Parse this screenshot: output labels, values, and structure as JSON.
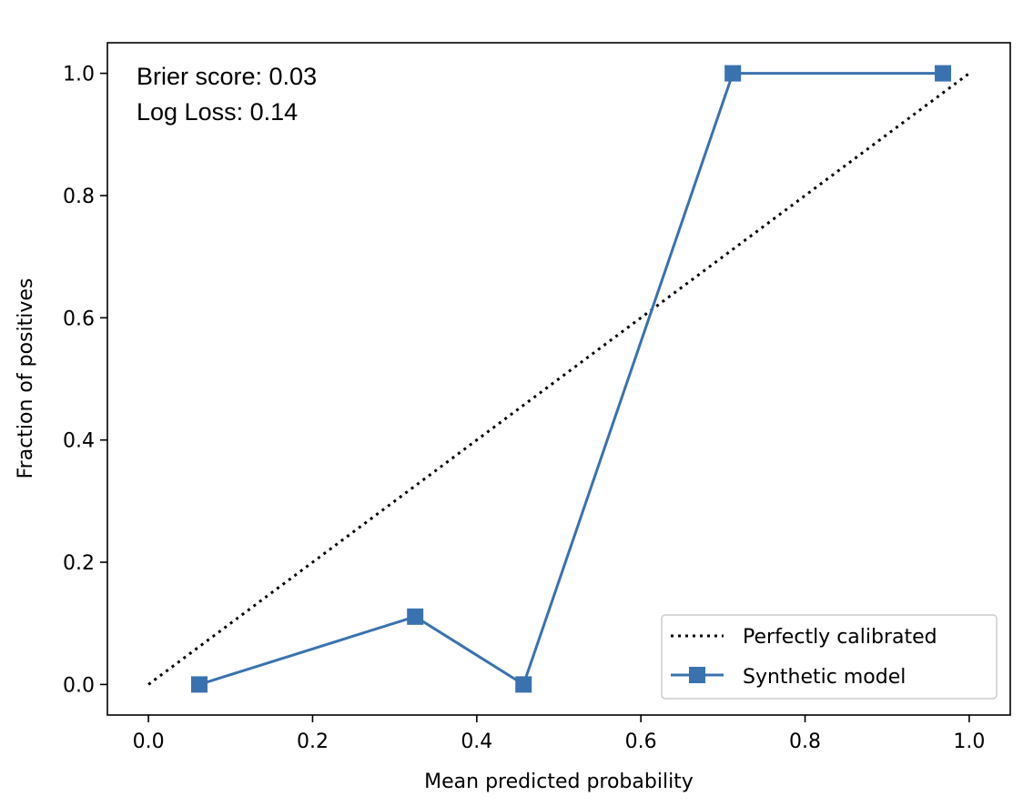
{
  "chart_data": {
    "type": "line",
    "title": "",
    "xlabel": "Mean predicted probability",
    "ylabel": "Fraction of positives",
    "xlim": [
      -0.05,
      1.05
    ],
    "ylim": [
      -0.05,
      1.05
    ],
    "xticks": [
      0.0,
      0.2,
      0.4,
      0.6,
      0.8,
      1.0
    ],
    "xtick_labels": [
      "0.0",
      "0.2",
      "0.4",
      "0.6",
      "0.8",
      "1.0"
    ],
    "yticks": [
      0.0,
      0.2,
      0.4,
      0.6,
      0.8,
      1.0
    ],
    "ytick_labels": [
      "0.0",
      "0.2",
      "0.4",
      "0.6",
      "0.8",
      "1.0"
    ],
    "grid": false,
    "legend_position": "lower-right",
    "annotations": [
      "Brier score: 0.03",
      "Log Loss: 0.14"
    ],
    "series": [
      {
        "name": "Perfectly calibrated",
        "style": "dotted",
        "color": "#000000",
        "marker": "none",
        "x": [
          0.0,
          1.0
        ],
        "y": [
          0.0,
          1.0
        ]
      },
      {
        "name": "Synthetic model",
        "style": "solid",
        "color": "#3a72b0",
        "marker": "square",
        "x": [
          0.062,
          0.325,
          0.457,
          0.712,
          0.968
        ],
        "y": [
          0.0,
          0.111,
          0.0,
          1.0,
          1.0
        ]
      }
    ]
  }
}
